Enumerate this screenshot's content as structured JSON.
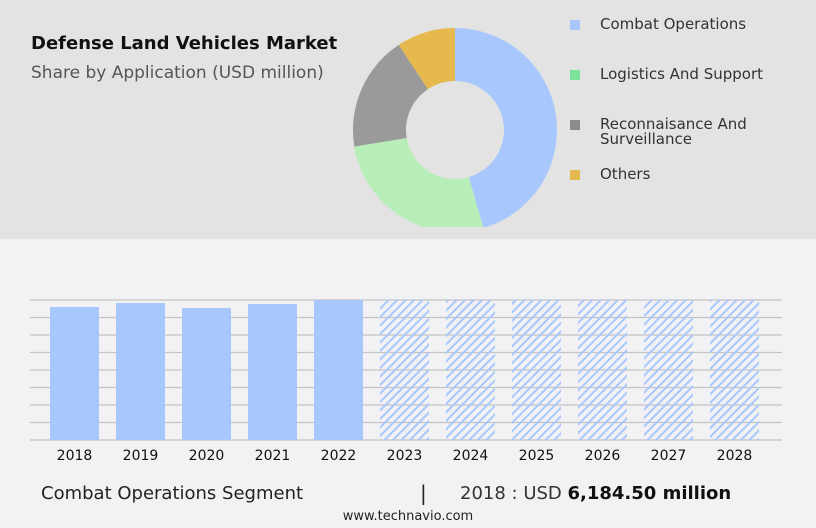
{
  "header": {
    "title": "Defense Land Vehicles Market",
    "subtitle": "Share by Application (USD million)"
  },
  "chart_data": [
    {
      "type": "pie",
      "variant": "donut",
      "title": "Share by Application (USD million)",
      "labels": [
        "Combat Operations",
        "Logistics And Support",
        "Reconnaisance And Surveillance",
        "Others"
      ],
      "values": [
        45.5,
        26.9,
        18.3,
        9.3
      ],
      "colors": [
        "#a8c8fd",
        "#b8eeb8",
        "#9a9a9a",
        "#e6b94f"
      ],
      "legend_colors": [
        "#a8c8fd",
        "#7de39a",
        "#8c8c8c",
        "#e6b94f"
      ],
      "legend": "right"
    },
    {
      "type": "bar",
      "title": "Combat Operations Segment",
      "categories": [
        "2018",
        "2019",
        "2020",
        "2021",
        "2022",
        "2023",
        "2024",
        "2025",
        "2026",
        "2027",
        "2028"
      ],
      "values": [
        6184.5,
        6370,
        6138,
        6324,
        6510,
        null,
        null,
        null,
        null,
        null,
        null
      ],
      "forecast": [
        false,
        false,
        false,
        false,
        false,
        true,
        true,
        true,
        true,
        true,
        true
      ],
      "ylim": [
        0,
        6510
      ],
      "grid": true,
      "color": "#a8c8fd"
    }
  ],
  "footer": {
    "segment": "Combat Operations Segment",
    "separator": "|",
    "year_label": "2018 : USD ",
    "value": "6,184.50 million",
    "site": "www.technavio.com"
  }
}
